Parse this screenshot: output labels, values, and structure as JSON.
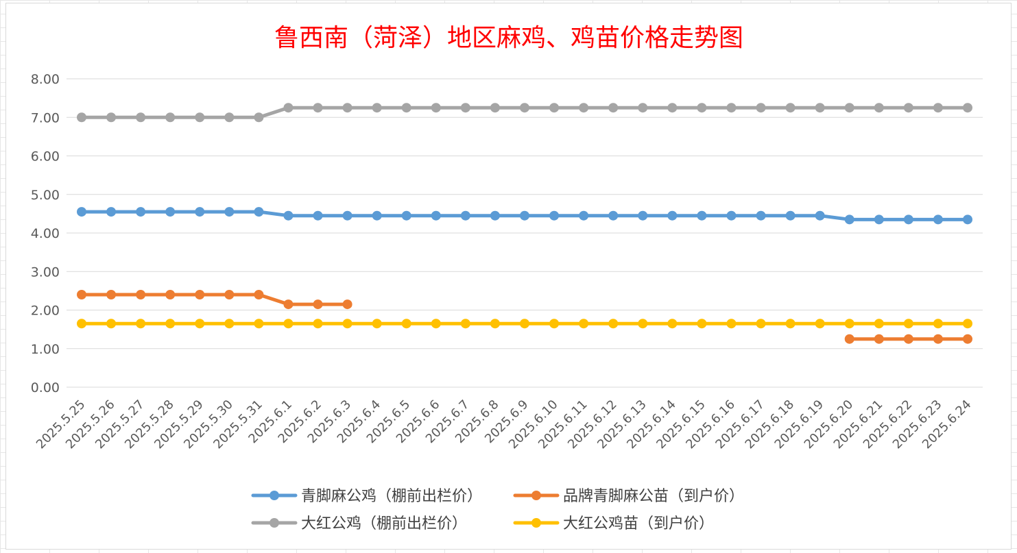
{
  "chart_data": {
    "type": "line",
    "title": "鲁西南（菏泽）地区麻鸡、鸡苗价格走势图",
    "xlabel": "",
    "ylabel": "",
    "ylim": [
      0,
      8
    ],
    "yticks": [
      "0.00",
      "1.00",
      "2.00",
      "3.00",
      "4.00",
      "5.00",
      "6.00",
      "7.00",
      "8.00"
    ],
    "grid": true,
    "legend_position": "bottom",
    "categories": [
      "2025.5.25",
      "2025.5.26",
      "2025.5.27",
      "2025.5.28",
      "2025.5.29",
      "2025.5.30",
      "2025.5.31",
      "2025.6.1",
      "2025.6.2",
      "2025.6.3",
      "2025.6.4",
      "2025.6.5",
      "2025.6.6",
      "2025.6.7",
      "2025.6.8",
      "2025.6.9",
      "2025.6.10",
      "2025.6.11",
      "2025.6.12",
      "2025.6.13",
      "2025.6.14",
      "2025.6.15",
      "2025.6.16",
      "2025.6.17",
      "2025.6.18",
      "2025.6.19",
      "2025.6.20",
      "2025.6.21",
      "2025.6.22",
      "2025.6.23",
      "2025.6.24"
    ],
    "series": [
      {
        "name": "青脚麻公鸡（棚前出栏价）",
        "color": "#5b9bd5",
        "values": [
          4.55,
          4.55,
          4.55,
          4.55,
          4.55,
          4.55,
          4.55,
          4.45,
          4.45,
          4.45,
          4.45,
          4.45,
          4.45,
          4.45,
          4.45,
          4.45,
          4.45,
          4.45,
          4.45,
          4.45,
          4.45,
          4.45,
          4.45,
          4.45,
          4.45,
          4.45,
          4.35,
          4.35,
          4.35,
          4.35,
          4.35
        ]
      },
      {
        "name": "品牌青脚麻公苗（到户价）",
        "color": "#ed7d31",
        "values": [
          2.4,
          2.4,
          2.4,
          2.4,
          2.4,
          2.4,
          2.4,
          2.15,
          2.15,
          2.15,
          null,
          null,
          null,
          null,
          null,
          null,
          null,
          null,
          null,
          null,
          null,
          null,
          null,
          null,
          null,
          null,
          1.25,
          1.25,
          1.25,
          1.25,
          1.25
        ]
      },
      {
        "name": "大红公鸡（棚前出栏价）",
        "color": "#a5a5a5",
        "values": [
          7.0,
          7.0,
          7.0,
          7.0,
          7.0,
          7.0,
          7.0,
          7.25,
          7.25,
          7.25,
          7.25,
          7.25,
          7.25,
          7.25,
          7.25,
          7.25,
          7.25,
          7.25,
          7.25,
          7.25,
          7.25,
          7.25,
          7.25,
          7.25,
          7.25,
          7.25,
          7.25,
          7.25,
          7.25,
          7.25,
          7.25
        ]
      },
      {
        "name": "大红公鸡苗（到户价）",
        "color": "#ffc000",
        "values": [
          1.65,
          1.65,
          1.65,
          1.65,
          1.65,
          1.65,
          1.65,
          1.65,
          1.65,
          1.65,
          1.65,
          1.65,
          1.65,
          1.65,
          1.65,
          1.65,
          1.65,
          1.65,
          1.65,
          1.65,
          1.65,
          1.65,
          1.65,
          1.65,
          1.65,
          1.65,
          1.65,
          1.65,
          1.65,
          1.65,
          1.65
        ]
      }
    ],
    "legend_order": [
      0,
      1,
      2,
      3
    ]
  }
}
